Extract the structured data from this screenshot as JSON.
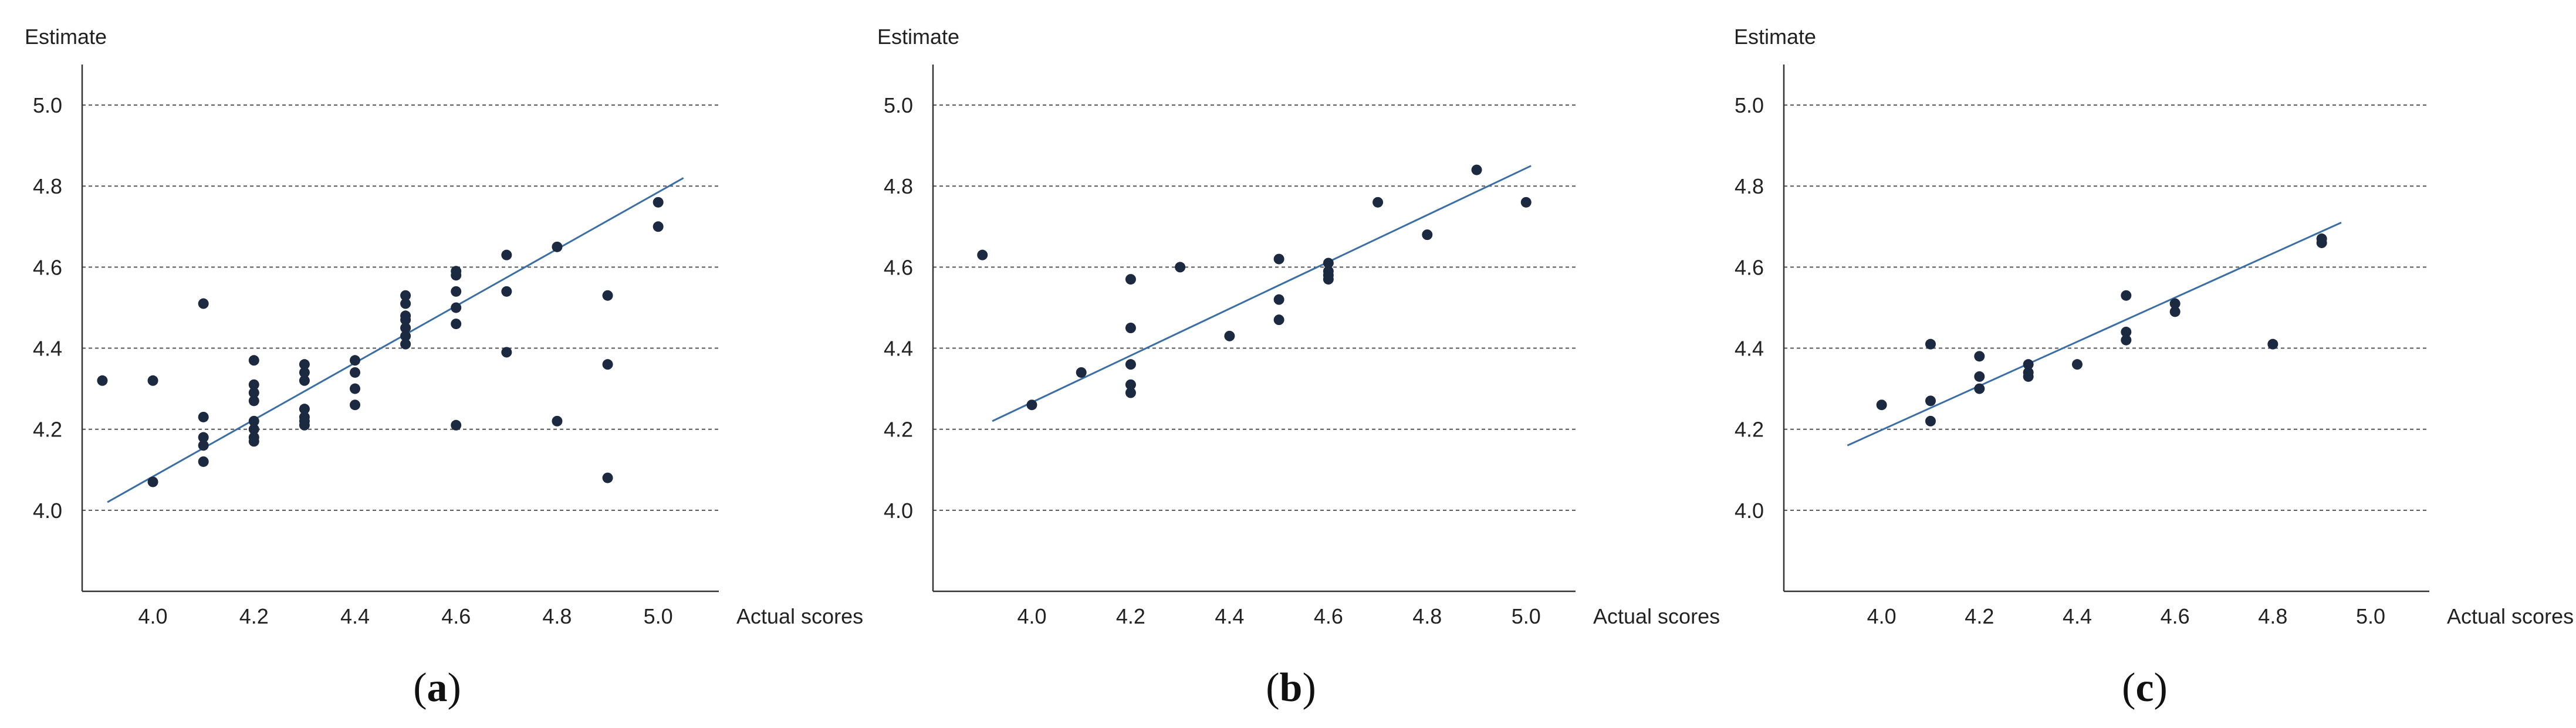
{
  "chart_data": [
    {
      "type": "scatter",
      "panel_label": "a",
      "xlabel": "Actual scores",
      "ylabel": "Estimate",
      "x_ticks": [
        "4.0",
        "4.2",
        "4.4",
        "4.6",
        "4.8",
        "5.0"
      ],
      "y_ticks": [
        "4.0",
        "4.2",
        "4.4",
        "4.6",
        "4.8",
        "5.0"
      ],
      "xlim": [
        3.86,
        5.12
      ],
      "ylim": [
        3.8,
        5.1
      ],
      "grid": "horizontal dashed",
      "colors": {
        "points": "#1b2a41",
        "fit_line": "#3a6ea5"
      },
      "points": [
        {
          "x": 3.9,
          "y": 4.32
        },
        {
          "x": 4.0,
          "y": 4.32
        },
        {
          "x": 4.0,
          "y": 4.07
        },
        {
          "x": 4.1,
          "y": 4.51
        },
        {
          "x": 4.1,
          "y": 4.23
        },
        {
          "x": 4.1,
          "y": 4.18
        },
        {
          "x": 4.1,
          "y": 4.16
        },
        {
          "x": 4.1,
          "y": 4.12
        },
        {
          "x": 4.2,
          "y": 4.37
        },
        {
          "x": 4.2,
          "y": 4.31
        },
        {
          "x": 4.2,
          "y": 4.29
        },
        {
          "x": 4.2,
          "y": 4.27
        },
        {
          "x": 4.2,
          "y": 4.22
        },
        {
          "x": 4.2,
          "y": 4.2
        },
        {
          "x": 4.2,
          "y": 4.18
        },
        {
          "x": 4.2,
          "y": 4.17
        },
        {
          "x": 4.3,
          "y": 4.36
        },
        {
          "x": 4.3,
          "y": 4.34
        },
        {
          "x": 4.3,
          "y": 4.32
        },
        {
          "x": 4.3,
          "y": 4.25
        },
        {
          "x": 4.3,
          "y": 4.23
        },
        {
          "x": 4.3,
          "y": 4.22
        },
        {
          "x": 4.3,
          "y": 4.21
        },
        {
          "x": 4.4,
          "y": 4.37
        },
        {
          "x": 4.4,
          "y": 4.34
        },
        {
          "x": 4.4,
          "y": 4.3
        },
        {
          "x": 4.4,
          "y": 4.26
        },
        {
          "x": 4.5,
          "y": 4.53
        },
        {
          "x": 4.5,
          "y": 4.51
        },
        {
          "x": 4.5,
          "y": 4.48
        },
        {
          "x": 4.5,
          "y": 4.47
        },
        {
          "x": 4.5,
          "y": 4.45
        },
        {
          "x": 4.5,
          "y": 4.43
        },
        {
          "x": 4.5,
          "y": 4.41
        },
        {
          "x": 4.6,
          "y": 4.59
        },
        {
          "x": 4.6,
          "y": 4.58
        },
        {
          "x": 4.6,
          "y": 4.54
        },
        {
          "x": 4.6,
          "y": 4.5
        },
        {
          "x": 4.6,
          "y": 4.46
        },
        {
          "x": 4.6,
          "y": 4.21
        },
        {
          "x": 4.7,
          "y": 4.63
        },
        {
          "x": 4.7,
          "y": 4.54
        },
        {
          "x": 4.7,
          "y": 4.39
        },
        {
          "x": 4.8,
          "y": 4.65
        },
        {
          "x": 4.8,
          "y": 4.22
        },
        {
          "x": 4.9,
          "y": 4.53
        },
        {
          "x": 4.9,
          "y": 4.36
        },
        {
          "x": 4.9,
          "y": 4.08
        },
        {
          "x": 5.0,
          "y": 4.76
        },
        {
          "x": 5.0,
          "y": 4.7
        }
      ],
      "fit_line": [
        {
          "x": 3.91,
          "y": 4.02
        },
        {
          "x": 5.05,
          "y": 4.82
        }
      ]
    },
    {
      "type": "scatter",
      "panel_label": "b",
      "xlabel": "Actual scores",
      "ylabel": "Estimate",
      "x_ticks": [
        "4.0",
        "4.2",
        "4.4",
        "4.6",
        "4.8",
        "5.0"
      ],
      "y_ticks": [
        "4.0",
        "4.2",
        "4.4",
        "4.6",
        "4.8",
        "5.0"
      ],
      "xlim": [
        3.8,
        5.1
      ],
      "ylim": [
        3.8,
        5.1
      ],
      "grid": "horizontal dashed",
      "colors": {
        "points": "#1b2a41",
        "fit_line": "#3a6ea5"
      },
      "points": [
        {
          "x": 3.9,
          "y": 4.63
        },
        {
          "x": 4.0,
          "y": 4.26
        },
        {
          "x": 4.1,
          "y": 4.34
        },
        {
          "x": 4.2,
          "y": 4.57
        },
        {
          "x": 4.2,
          "y": 4.45
        },
        {
          "x": 4.2,
          "y": 4.36
        },
        {
          "x": 4.2,
          "y": 4.31
        },
        {
          "x": 4.2,
          "y": 4.29
        },
        {
          "x": 4.3,
          "y": 4.6
        },
        {
          "x": 4.4,
          "y": 4.43
        },
        {
          "x": 4.5,
          "y": 4.62
        },
        {
          "x": 4.5,
          "y": 4.52
        },
        {
          "x": 4.5,
          "y": 4.47
        },
        {
          "x": 4.6,
          "y": 4.61
        },
        {
          "x": 4.6,
          "y": 4.59
        },
        {
          "x": 4.6,
          "y": 4.58
        },
        {
          "x": 4.6,
          "y": 4.57
        },
        {
          "x": 4.7,
          "y": 4.76
        },
        {
          "x": 4.8,
          "y": 4.68
        },
        {
          "x": 4.9,
          "y": 4.84
        },
        {
          "x": 5.0,
          "y": 4.76
        }
      ],
      "fit_line": [
        {
          "x": 3.92,
          "y": 4.22
        },
        {
          "x": 5.01,
          "y": 4.85
        }
      ]
    },
    {
      "type": "scatter",
      "panel_label": "c",
      "xlabel": "Actual scores",
      "ylabel": "Estimate",
      "x_ticks": [
        "4.0",
        "4.2",
        "4.4",
        "4.6",
        "4.8",
        "5.0"
      ],
      "y_ticks": [
        "4.0",
        "4.2",
        "4.4",
        "4.6",
        "4.8",
        "5.0"
      ],
      "xlim": [
        3.8,
        5.12
      ],
      "ylim": [
        3.8,
        5.1
      ],
      "grid": "horizontal dashed",
      "colors": {
        "points": "#1b2a41",
        "fit_line": "#3a6ea5"
      },
      "points": [
        {
          "x": 4.0,
          "y": 4.26
        },
        {
          "x": 4.1,
          "y": 4.41
        },
        {
          "x": 4.1,
          "y": 4.27
        },
        {
          "x": 4.1,
          "y": 4.22
        },
        {
          "x": 4.2,
          "y": 4.38
        },
        {
          "x": 4.2,
          "y": 4.33
        },
        {
          "x": 4.2,
          "y": 4.3
        },
        {
          "x": 4.3,
          "y": 4.36
        },
        {
          "x": 4.3,
          "y": 4.34
        },
        {
          "x": 4.3,
          "y": 4.33
        },
        {
          "x": 4.4,
          "y": 4.36
        },
        {
          "x": 4.5,
          "y": 4.53
        },
        {
          "x": 4.5,
          "y": 4.44
        },
        {
          "x": 4.5,
          "y": 4.42
        },
        {
          "x": 4.6,
          "y": 4.51
        },
        {
          "x": 4.6,
          "y": 4.49
        },
        {
          "x": 4.8,
          "y": 4.41
        },
        {
          "x": 4.9,
          "y": 4.67
        },
        {
          "x": 4.9,
          "y": 4.66
        }
      ],
      "fit_line": [
        {
          "x": 3.93,
          "y": 4.16
        },
        {
          "x": 4.94,
          "y": 4.71
        }
      ]
    }
  ]
}
